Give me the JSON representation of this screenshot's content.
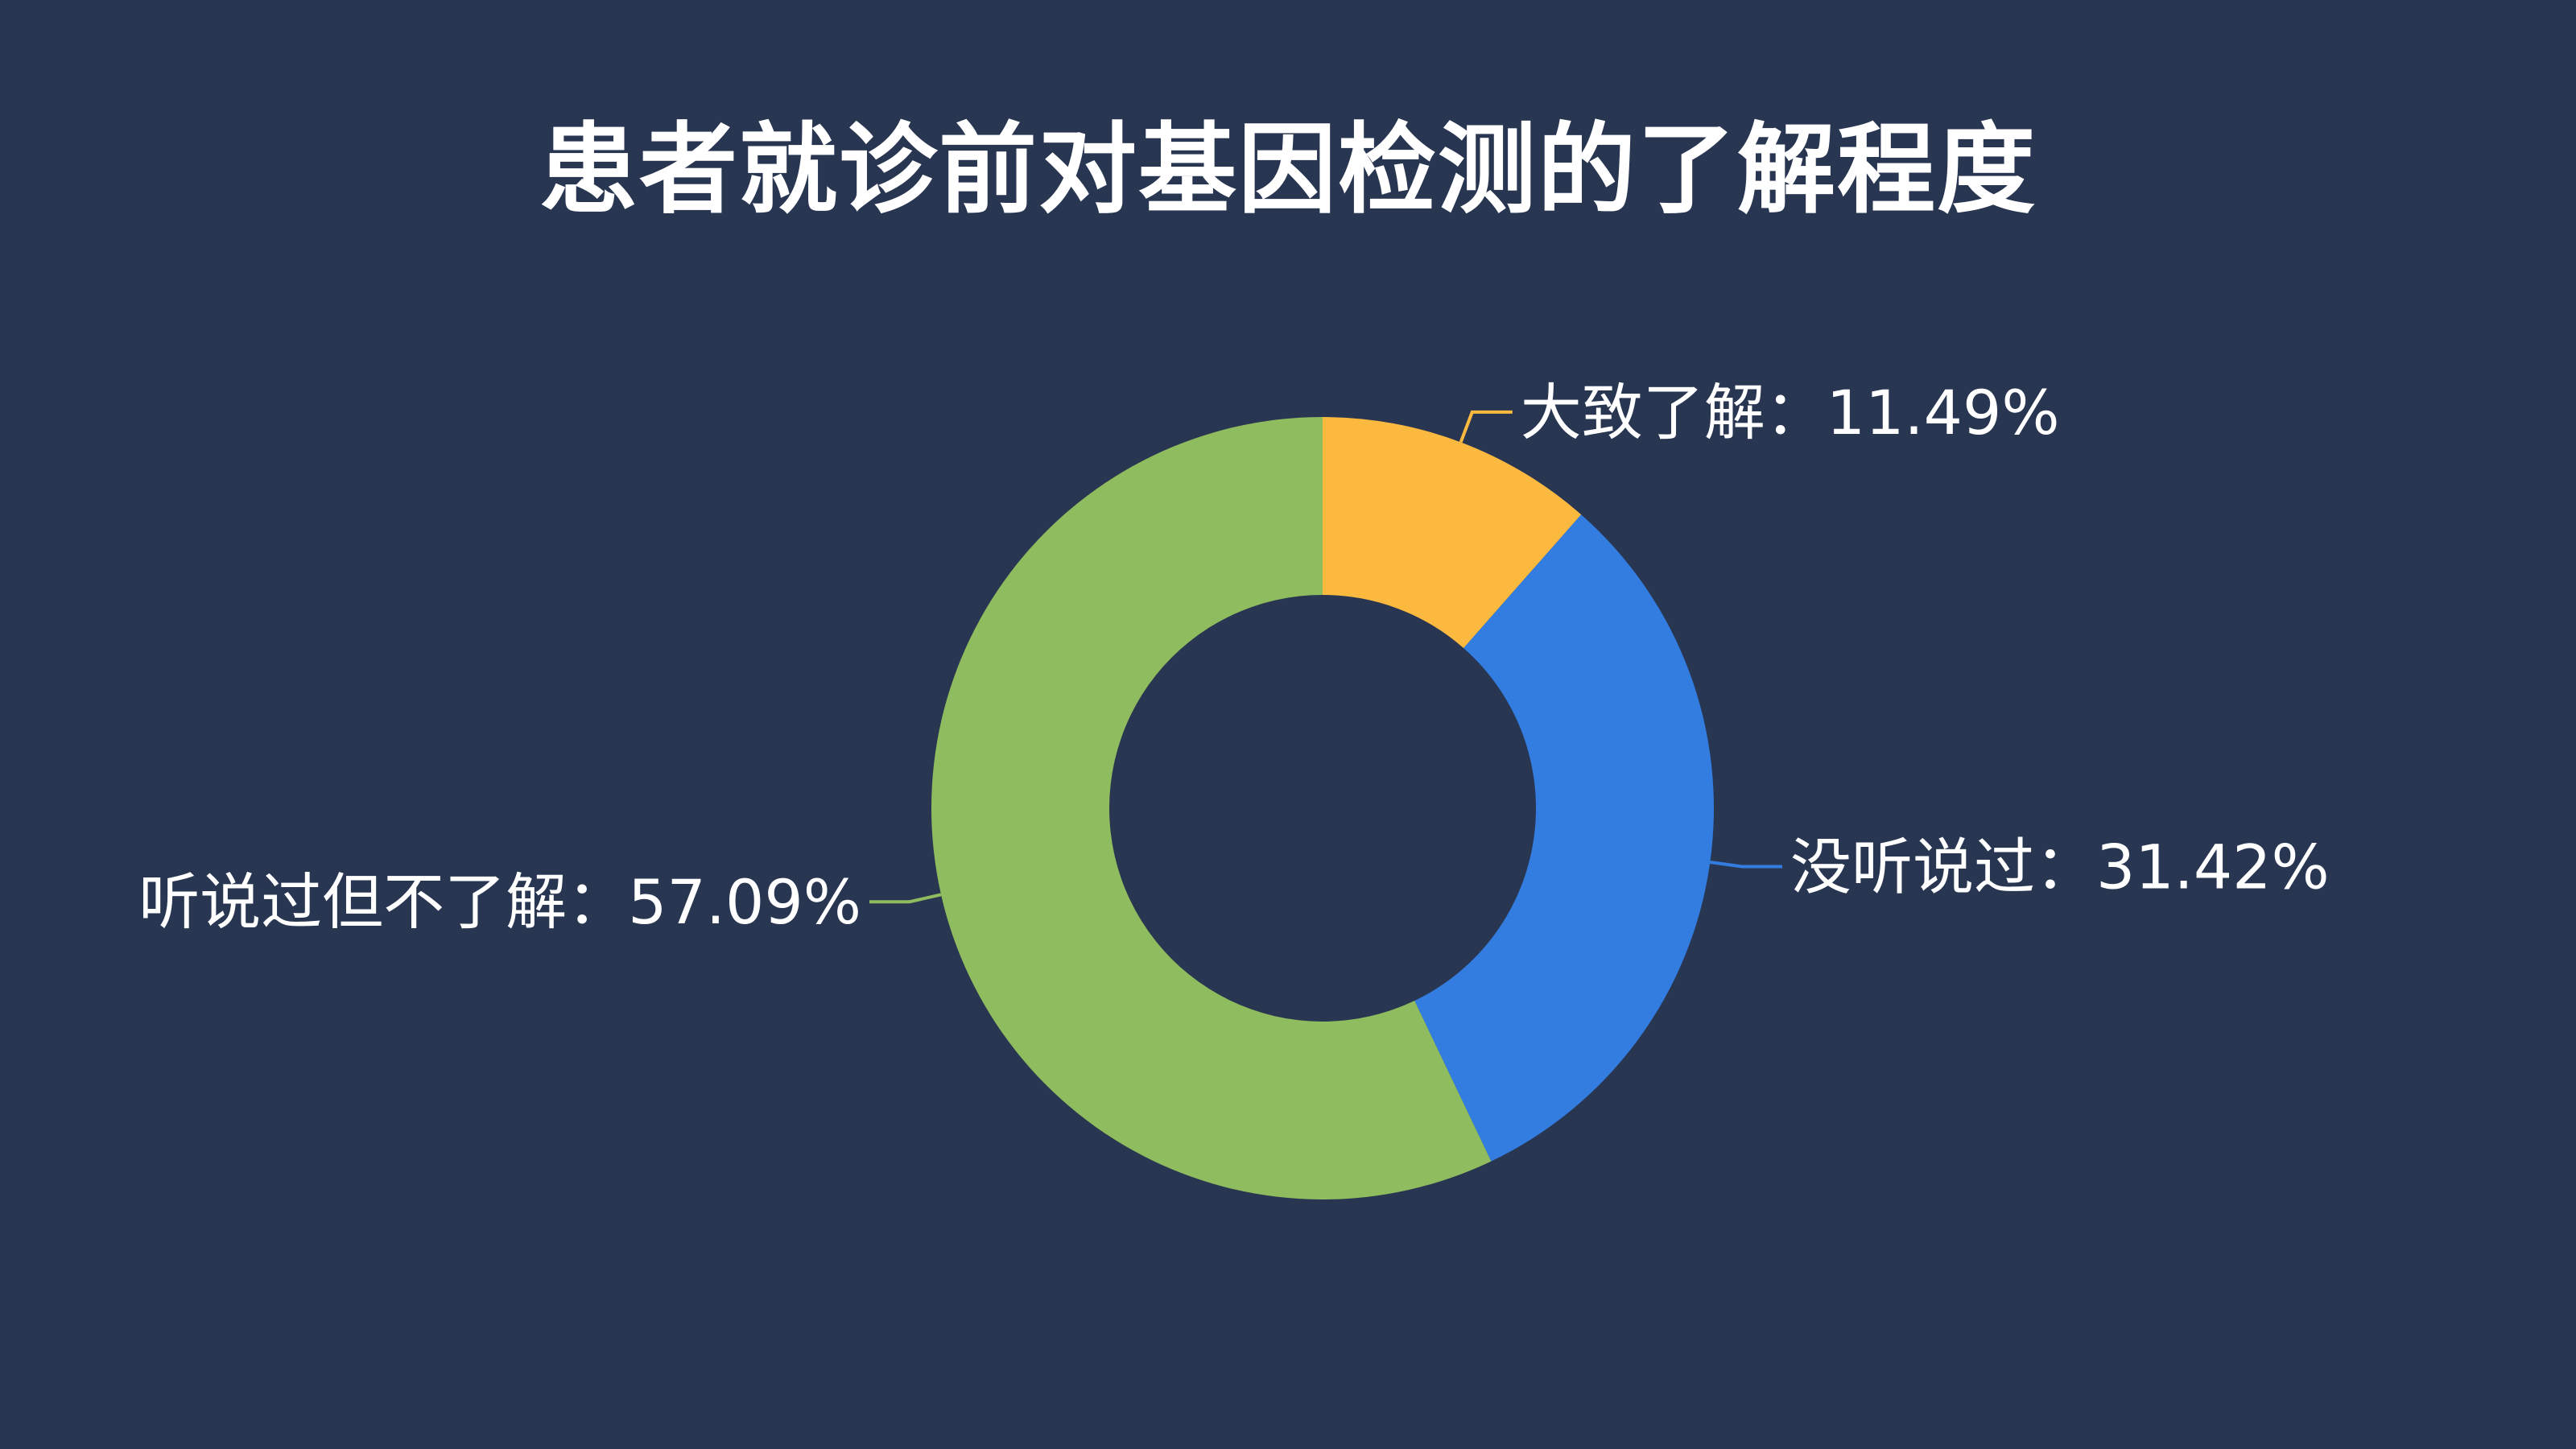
{
  "chart_data": {
    "type": "pie",
    "variant": "donut",
    "title": "患者就诊前对基因检测的了解程度",
    "legend": "none",
    "categories": [
      "大致了解",
      "没听说过",
      "听说过但不了解"
    ],
    "values": [
      11.49,
      31.42,
      57.09
    ],
    "unit": "%",
    "labels": [
      "大致了解：11.49%",
      "没听说过：31.42%",
      "听说过但不了解：57.09%"
    ],
    "colors": [
      "#fbba3f",
      "#337ce0",
      "#8fbc5e"
    ],
    "background": "#293651"
  }
}
